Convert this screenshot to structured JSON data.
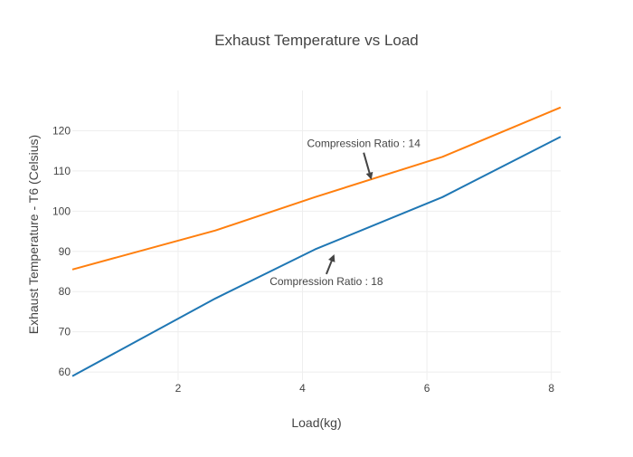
{
  "chart_data": {
    "type": "line",
    "title": "Exhaust Temperature vs Load",
    "xlabel": "Load(kg)",
    "ylabel": "Exhaust Temperature - T6 (Celsius)",
    "xlim": [
      0.3,
      8.15
    ],
    "ylim": [
      58,
      130
    ],
    "xticks": [
      2,
      4,
      6,
      8
    ],
    "yticks": [
      60,
      70,
      80,
      90,
      100,
      110,
      120
    ],
    "grid": true,
    "legend": "none",
    "series": [
      {
        "color": "#ff7f0e",
        "x": [
          0.3,
          2.6,
          4.2,
          6.25,
          8.15
        ],
        "y": [
          85.5,
          95.2,
          103.5,
          113.5,
          125.8
        ]
      },
      {
        "color": "#1f77b4",
        "x": [
          0.3,
          2.6,
          4.2,
          6.25,
          8.15
        ],
        "y": [
          59.0,
          78.3,
          90.5,
          103.5,
          118.5
        ]
      }
    ],
    "annotations": [
      {
        "text": "Compression Ratio : 14",
        "x": 5.1,
        "y": 107.8
      },
      {
        "text": "Compression Ratio : 18",
        "x": 4.5,
        "y": 89.3
      }
    ]
  }
}
